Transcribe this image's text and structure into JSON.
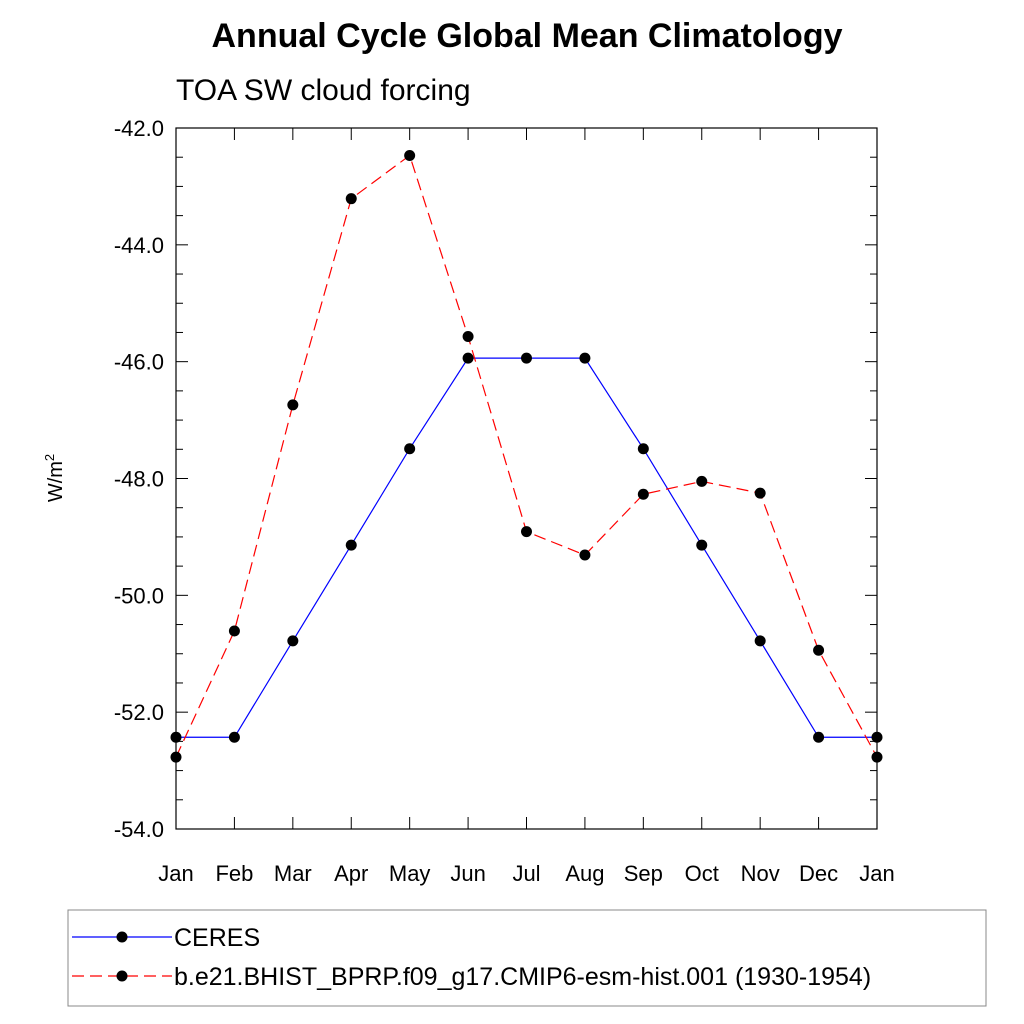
{
  "chart_data": {
    "type": "line",
    "title": "Annual Cycle Global Mean Climatology",
    "subtitle": "TOA SW cloud forcing",
    "ylabel": "W/m",
    "ylabel_superscript": "2",
    "ylim": [
      -54.0,
      -42.0
    ],
    "ymajor_ticks": [
      -54.0,
      -52.0,
      -50.0,
      -48.0,
      -46.0,
      -44.0,
      -42.0
    ],
    "ytick_labels": [
      "-54.0",
      "-52.0",
      "-50.0",
      "-48.0",
      "-46.0",
      "-44.0",
      "-42.0"
    ],
    "categories": [
      "Jan",
      "Feb",
      "Mar",
      "Apr",
      "May",
      "Jun",
      "Jul",
      "Aug",
      "Sep",
      "Oct",
      "Nov",
      "Dec",
      "Jan"
    ],
    "series": [
      {
        "name": "CERES",
        "color": "#0000ff",
        "dash": "solid",
        "values": [
          -52.43,
          -52.43,
          -50.78,
          -49.14,
          -47.49,
          -45.94,
          -45.94,
          -45.94,
          -47.49,
          -49.14,
          -50.78,
          -52.43,
          -52.43
        ]
      },
      {
        "name": "b.e21.BHIST_BPRP.f09_g17.CMIP6-esm-hist.001 (1930-1954)",
        "color": "#ff0000",
        "dash": "dashed",
        "values": [
          -52.77,
          -50.61,
          -46.74,
          -43.21,
          -42.47,
          -45.57,
          -48.91,
          -49.31,
          -48.27,
          -48.05,
          -48.25,
          -50.94,
          -52.77
        ]
      }
    ],
    "legend_position": "bottom"
  }
}
